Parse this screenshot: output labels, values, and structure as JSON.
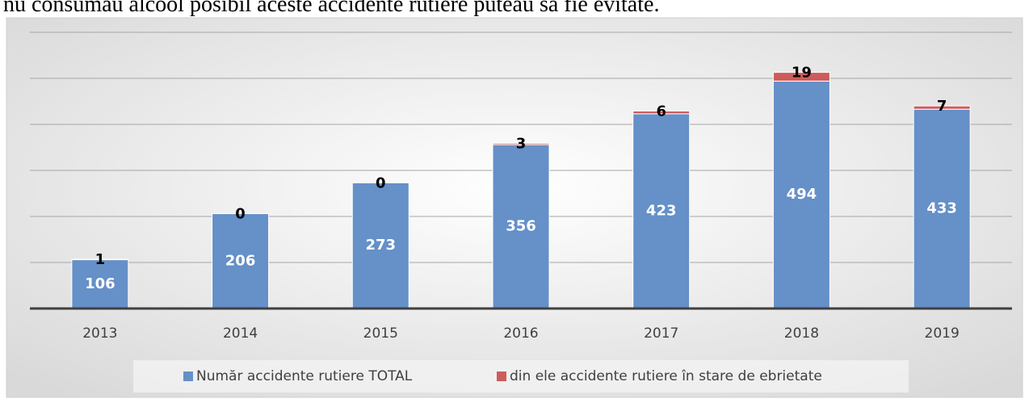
{
  "context_text": "nu consumau alcool posibil aceste accidente rutiere puteau să fie evitate.",
  "chart_data": {
    "type": "stacked_bar",
    "categories": [
      "2013",
      "2014",
      "2015",
      "2016",
      "2017",
      "2018",
      "2019"
    ],
    "series": [
      {
        "name": "Număr accidente rutiere TOTAL",
        "color": "#6590c8",
        "values": [
          106,
          206,
          273,
          356,
          423,
          494,
          433
        ]
      },
      {
        "name": "din ele accidente rutiere în stare de ebrietate",
        "color": "#cd5c5c",
        "values": [
          1,
          0,
          0,
          3,
          6,
          19,
          7
        ]
      }
    ],
    "ylim": [
      0,
      600
    ],
    "yticks": [
      0,
      100,
      200,
      300,
      400,
      500,
      600
    ],
    "grid": true,
    "legend": "bottom"
  }
}
